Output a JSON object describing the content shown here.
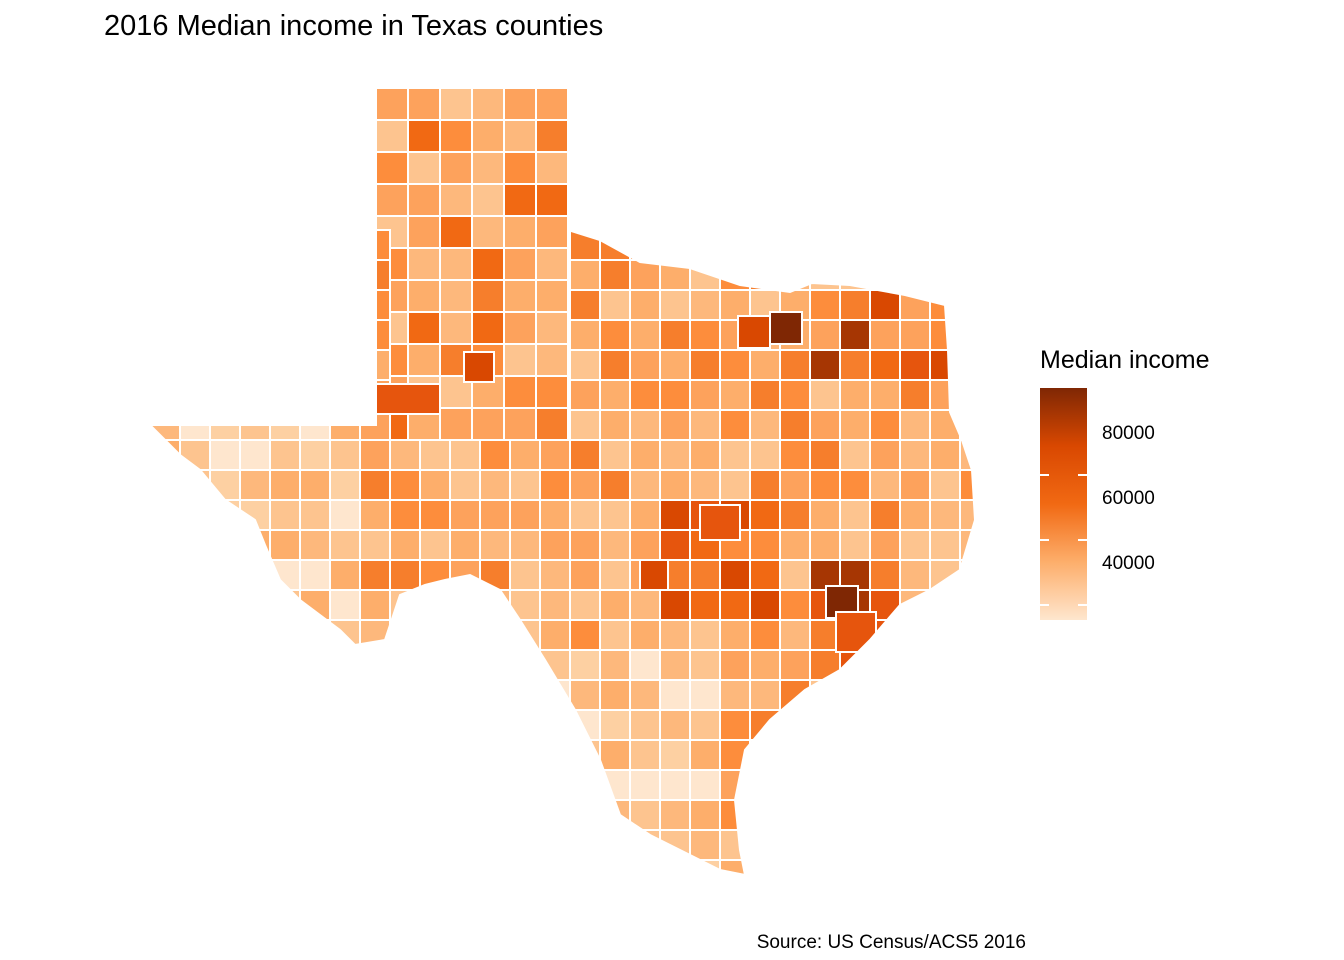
{
  "title": "2016 Median income in Texas counties",
  "caption": "Source: US Census/ACS5 2016",
  "legend": {
    "title": "Median income",
    "labels": [
      "80000",
      "60000",
      "40000"
    ],
    "values": [
      80000,
      60000,
      40000
    ],
    "min": 22000,
    "max": 93000,
    "gradient": [
      "#fee6ce",
      "#fdae6b",
      "#f16913",
      "#d94801",
      "#7f2704"
    ]
  },
  "map": {
    "region": "Texas counties",
    "fill_low": "#fee6ce",
    "fill_high": "#7f2704",
    "border": "#ffffff"
  }
}
